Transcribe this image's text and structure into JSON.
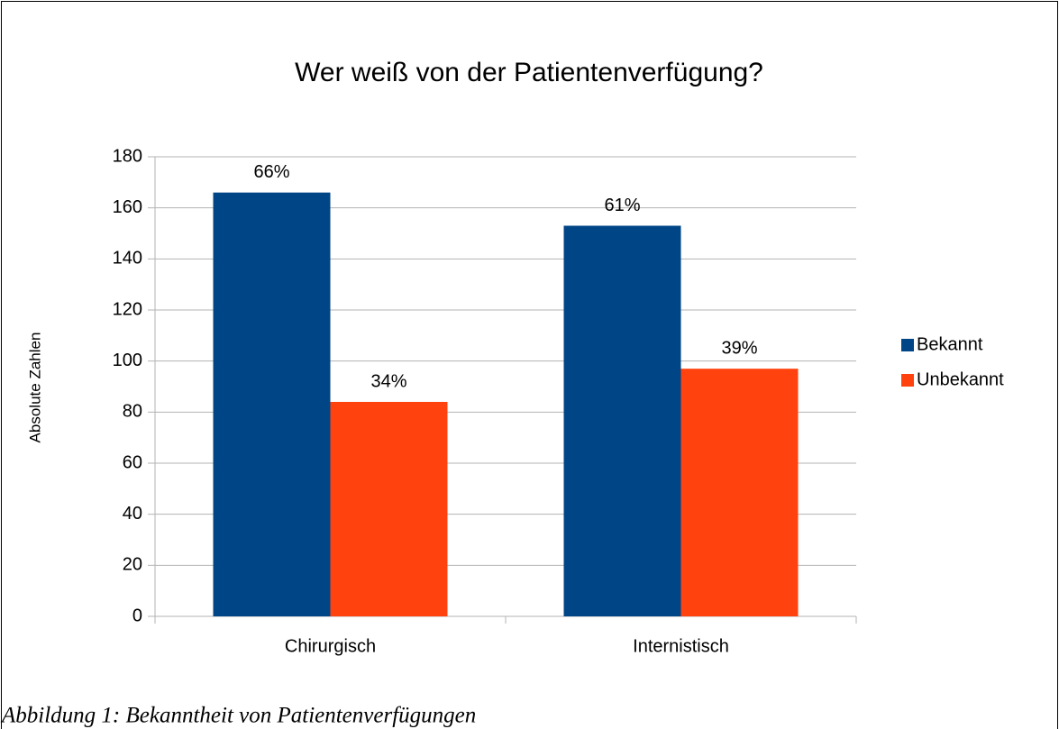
{
  "chart_data": {
    "type": "bar",
    "title": "Wer weiß von der Patientenverfügung?",
    "y_label": "Absolute Zahlen",
    "categories": [
      "Chirurgisch",
      "Internistisch"
    ],
    "series": [
      {
        "name": "Bekannt",
        "color": "#004586",
        "values": [
          166,
          153
        ],
        "data_labels": [
          "66%",
          "61%"
        ]
      },
      {
        "name": "Unbekannt",
        "color": "#ff420e",
        "values": [
          84,
          97
        ],
        "data_labels": [
          "34%",
          "39%"
        ]
      }
    ],
    "ylim": [
      0,
      180
    ],
    "yticks": [
      0,
      20,
      40,
      60,
      80,
      100,
      120,
      140,
      160,
      180
    ],
    "grid": true,
    "legend": "right"
  },
  "caption": "Abbildung 1: Bekanntheit von Patientenverfügungen"
}
